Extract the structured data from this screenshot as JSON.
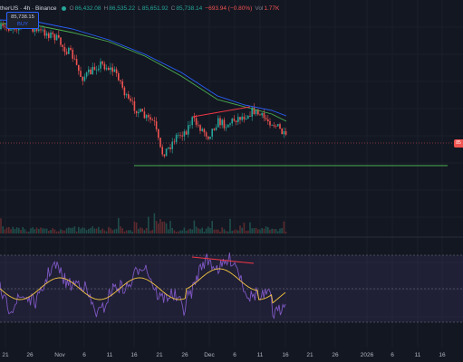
{
  "legend": {
    "symbol": "therUS · 4h · Binance",
    "open_label": "O",
    "open": "86,432.08",
    "high_label": "H",
    "high": "86,535.22",
    "low_label": "L",
    "low": "85,651.92",
    "close_label": "C",
    "close": "85,738.14",
    "change": "−693.94 (−0.80%)",
    "vol_label": "Vol",
    "vol": "1.77K"
  },
  "order_box": {
    "price": "85,738.15",
    "action": "BUY"
  },
  "price_tag": "85",
  "x_axis": {
    "ticks": [
      "21",
      "26",
      "Nov",
      "6",
      "11",
      "16",
      "21",
      "26",
      "Dec",
      "6",
      "11",
      "16",
      "21",
      "26",
      "2026",
      "6",
      "11",
      "16"
    ]
  },
  "colors": {
    "background": "#131722",
    "up": "#26a69a",
    "down": "#ef5350",
    "ma_slow": "#2962ff",
    "ma_fast": "#4caf50",
    "support_line": "#4caf50",
    "divergence_line": "#f23645",
    "rsi_line": "#7e57c2",
    "rsi_ma": "#f5c542",
    "rsi_band": "#7e57c2"
  },
  "icons": {
    "status_dot": "market-open-dot-icon"
  }
}
